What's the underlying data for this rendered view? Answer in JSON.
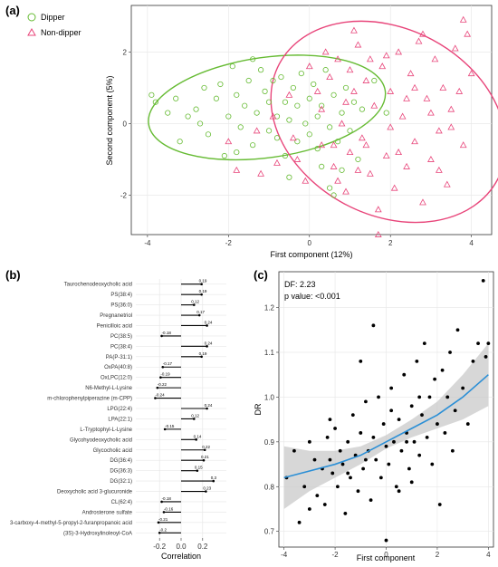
{
  "colors": {
    "dipper": "#66bb33",
    "nondipper": "#e8457a",
    "fit": "#2b8fd6",
    "band": "#c9c9c9"
  },
  "chart_data": [
    {
      "panel": "(a)",
      "type": "scatter",
      "xlabel": "First component (12%)",
      "ylabel": "Second component (5%)",
      "xlim": [
        -4.4,
        4.5
      ],
      "ylim": [
        -3.1,
        3.3
      ],
      "xticks": [
        -4,
        -2,
        0,
        2,
        4
      ],
      "yticks": [
        -2,
        0,
        2
      ],
      "grid": true,
      "legend_position": "top-left",
      "series": [
        {
          "name": "Dipper",
          "marker": "circle",
          "points": [
            [
              -3.9,
              0.8
            ],
            [
              -3.8,
              0.6
            ],
            [
              -3.5,
              0.3
            ],
            [
              -3.3,
              0.7
            ],
            [
              -3.2,
              -0.5
            ],
            [
              -3.0,
              0.2
            ],
            [
              -2.8,
              0.4
            ],
            [
              -2.7,
              0.0
            ],
            [
              -2.5,
              -0.3
            ],
            [
              -2.3,
              0.7
            ],
            [
              -2.2,
              1.1
            ],
            [
              -2.0,
              0.2
            ],
            [
              -1.9,
              1.6
            ],
            [
              -1.8,
              0.8
            ],
            [
              -1.8,
              -0.8
            ],
            [
              -1.7,
              -0.1
            ],
            [
              -1.6,
              0.5
            ],
            [
              -1.5,
              1.2
            ],
            [
              -1.4,
              -0.6
            ],
            [
              -1.3,
              0.3
            ],
            [
              -1.2,
              1.5
            ],
            [
              -1.1,
              0.9
            ],
            [
              -1.0,
              -0.2
            ],
            [
              -1.0,
              0.6
            ],
            [
              -0.9,
              1.2
            ],
            [
              -0.8,
              -0.4
            ],
            [
              -0.8,
              0.2
            ],
            [
              -0.7,
              1.3
            ],
            [
              -0.6,
              0.6
            ],
            [
              -0.6,
              -0.9
            ],
            [
              -0.5,
              0.1
            ],
            [
              -0.4,
              1.0
            ],
            [
              -0.3,
              -0.5
            ],
            [
              -0.3,
              0.5
            ],
            [
              -0.2,
              1.4
            ],
            [
              -0.1,
              0.0
            ],
            [
              0.0,
              -0.3
            ],
            [
              0.0,
              0.7
            ],
            [
              0.1,
              1.1
            ],
            [
              0.2,
              0.2
            ],
            [
              0.2,
              -0.7
            ],
            [
              0.3,
              0.5
            ],
            [
              0.4,
              1.5
            ],
            [
              0.5,
              -0.1
            ],
            [
              0.6,
              0.8
            ],
            [
              0.7,
              -0.5
            ],
            [
              0.8,
              0.3
            ],
            [
              0.9,
              1.0
            ],
            [
              1.0,
              -0.2
            ],
            [
              1.1,
              0.6
            ],
            [
              1.2,
              -1.0
            ],
            [
              1.3,
              0.4
            ],
            [
              0.5,
              -1.8
            ],
            [
              -2.1,
              -0.9
            ],
            [
              -1.4,
              1.8
            ],
            [
              0.8,
              -1.3
            ],
            [
              1.6,
              1.2
            ],
            [
              -0.5,
              -1.5
            ],
            [
              0.3,
              -1.2
            ],
            [
              -2.6,
              1.0
            ],
            [
              0.6,
              -2.0
            ],
            [
              1.9,
              0.3
            ]
          ]
        },
        {
          "name": "Non-dipper",
          "marker": "triangle",
          "points": [
            [
              -1.8,
              -1.3
            ],
            [
              -1.2,
              -1.4
            ],
            [
              -0.8,
              -1.1
            ],
            [
              -0.5,
              0.8
            ],
            [
              -0.3,
              -1.0
            ],
            [
              -0.1,
              -1.6
            ],
            [
              0.0,
              1.6
            ],
            [
              0.2,
              0.9
            ],
            [
              0.3,
              -0.6
            ],
            [
              0.4,
              2.0
            ],
            [
              0.5,
              1.3
            ],
            [
              0.6,
              -1.2
            ],
            [
              0.7,
              1.8
            ],
            [
              0.8,
              0.0
            ],
            [
              0.9,
              -1.9
            ],
            [
              1.0,
              1.5
            ],
            [
              1.0,
              -0.8
            ],
            [
              1.1,
              0.9
            ],
            [
              1.2,
              2.2
            ],
            [
              1.3,
              -0.4
            ],
            [
              1.4,
              1.2
            ],
            [
              1.5,
              -1.4
            ],
            [
              1.6,
              0.5
            ],
            [
              1.7,
              -2.4
            ],
            [
              1.8,
              1.6
            ],
            [
              1.9,
              -0.9
            ],
            [
              2.0,
              0.9
            ],
            [
              2.1,
              -1.8
            ],
            [
              2.2,
              2.0
            ],
            [
              2.3,
              0.2
            ],
            [
              2.4,
              -1.2
            ],
            [
              2.5,
              1.4
            ],
            [
              2.6,
              -0.5
            ],
            [
              2.7,
              2.3
            ],
            [
              2.8,
              -2.2
            ],
            [
              2.9,
              0.7
            ],
            [
              3.0,
              -1.0
            ],
            [
              3.1,
              1.8
            ],
            [
              3.2,
              -0.2
            ],
            [
              3.3,
              1.0
            ],
            [
              3.4,
              -1.7
            ],
            [
              3.5,
              0.4
            ],
            [
              3.6,
              2.1
            ],
            [
              3.7,
              0.9
            ],
            [
              3.8,
              -0.6
            ],
            [
              3.9,
              2.5
            ],
            [
              4.0,
              1.4
            ],
            [
              3.8,
              2.9
            ],
            [
              3.5,
              -0.1
            ],
            [
              2.0,
              -0.1
            ],
            [
              1.5,
              1.8
            ],
            [
              0.6,
              -0.6
            ],
            [
              -0.4,
              -0.4
            ],
            [
              0.9,
              0.6
            ],
            [
              2.4,
              0.7
            ],
            [
              1.2,
              -1.3
            ],
            [
              1.7,
              -3.1
            ],
            [
              2.6,
              1.0
            ],
            [
              3.0,
              0.3
            ],
            [
              -0.9,
              0.2
            ],
            [
              0.3,
              0.4
            ],
            [
              1.4,
              -0.6
            ],
            [
              2.2,
              -0.8
            ],
            [
              3.2,
              -1.3
            ],
            [
              1.9,
              1.9
            ],
            [
              0.7,
              -1.6
            ],
            [
              -1.3,
              -0.2
            ],
            [
              -2.0,
              -0.5
            ],
            [
              1.1,
              2.6
            ],
            [
              2.8,
              2.5
            ]
          ]
        }
      ],
      "ellipses": [
        {
          "series": "Dipper",
          "cx": -1.05,
          "cy": 0.45,
          "rx": 2.95,
          "ry": 1.4,
          "angle": -8
        },
        {
          "series": "Non-dipper",
          "cx": 1.95,
          "cy": 0.05,
          "rx": 3.05,
          "ry": 2.6,
          "angle": 28
        }
      ]
    },
    {
      "panel": "(b)",
      "type": "bar",
      "xlabel": "Correlation",
      "xlim": [
        -0.42,
        0.42
      ],
      "xticks": [
        -0.2,
        0.0,
        0.2
      ],
      "xtick_labels": [
        "-0.2",
        "0.0",
        "0.2"
      ],
      "grid": true,
      "categories": [
        "Taurochenodeoxycholic acid",
        "PS(38:4)",
        "PS(36:0)",
        "Pregnanetriol",
        "Penicilloic acid",
        "PC(38:5)",
        "PC(38:4)",
        "PA(P-31:1)",
        "OxPA(40:8)",
        "OxLPC(12:0)",
        "N6-Methyl-L-Lysine",
        "m-chlorophenylpiperazine (m-CPP)",
        "LPG(22:4)",
        "LPA(22:1)",
        "L-Tryptophyl-L-Lysine",
        "Glycohyodeoxycholic acid",
        "Glycocholic acid",
        "DG(36:4)",
        "DG(36:3)",
        "DG(32:1)",
        "Deoxycholic acid 3-glucuronide",
        "CL(62:4)",
        "Androsterone sulfate",
        "3-carboxy-4-methyl-5-propyl-2-furanpropanoic acid",
        "(3S)-3-Hydroxylinoleoyl-CoA"
      ],
      "values": [
        0.19,
        0.19,
        0.12,
        0.17,
        0.24,
        -0.18,
        0.24,
        0.19,
        -0.17,
        -0.19,
        -0.22,
        -0.24,
        0.24,
        0.12,
        -0.15,
        0.14,
        0.22,
        0.21,
        0.15,
        0.3,
        0.23,
        -0.18,
        -0.16,
        -0.21,
        -0.2
      ],
      "labels": [
        "0.19",
        "0.19",
        "0.12",
        "0.17",
        "0.24",
        "-0.18",
        "0.24",
        "0.19",
        "-0.17",
        "-0.19",
        "-0.22",
        "-0.24",
        "0.24",
        "0.12",
        "-0.15",
        "0.14",
        "0.22",
        "0.21",
        "0.15",
        "0.3",
        "0.23",
        "-0.18",
        "-0.16",
        "-0.21",
        "-0.2"
      ]
    },
    {
      "panel": "(c)",
      "type": "scatter",
      "xlabel": "First component",
      "ylabel": "DR",
      "xlim": [
        -4.2,
        4.2
      ],
      "ylim": [
        0.665,
        1.28
      ],
      "xticks": [
        -4,
        -2,
        0,
        2,
        4
      ],
      "yticks": [
        0.7,
        0.8,
        0.9,
        1.0,
        1.1,
        1.2
      ],
      "yticks_labels": [
        "0.7",
        "0.8",
        "0.9",
        "1.0",
        "1.1",
        "1.2"
      ],
      "grid": true,
      "annotations": [
        "DF: 2.23",
        "p value: <0.001"
      ],
      "points": [
        [
          -3.9,
          0.82
        ],
        [
          -3.6,
          0.88
        ],
        [
          -3.4,
          0.72
        ],
        [
          -3.2,
          0.8
        ],
        [
          -3.0,
          0.9
        ],
        [
          -2.8,
          0.86
        ],
        [
          -2.7,
          0.78
        ],
        [
          -2.5,
          0.84
        ],
        [
          -2.4,
          0.76
        ],
        [
          -2.3,
          0.91
        ],
        [
          -2.2,
          0.86
        ],
        [
          -2.1,
          0.83
        ],
        [
          -2.0,
          0.93
        ],
        [
          -1.9,
          0.8
        ],
        [
          -1.8,
          0.88
        ],
        [
          -1.7,
          0.85
        ],
        [
          -1.6,
          0.74
        ],
        [
          -1.5,
          0.9
        ],
        [
          -1.4,
          0.82
        ],
        [
          -1.3,
          0.96
        ],
        [
          -1.2,
          0.87
        ],
        [
          -1.1,
          0.79
        ],
        [
          -1.0,
          0.92
        ],
        [
          -0.9,
          0.84
        ],
        [
          -0.8,
          0.99
        ],
        [
          -0.7,
          0.88
        ],
        [
          -0.6,
          0.77
        ],
        [
          -0.5,
          0.91
        ],
        [
          -0.4,
          0.86
        ],
        [
          -0.3,
          1.0
        ],
        [
          -0.2,
          0.82
        ],
        [
          -0.1,
          0.94
        ],
        [
          0.0,
          0.89
        ],
        [
          0.0,
          0.68
        ],
        [
          0.1,
          0.85
        ],
        [
          0.2,
          1.02
        ],
        [
          0.3,
          0.9
        ],
        [
          0.4,
          0.8
        ],
        [
          0.5,
          0.95
        ],
        [
          0.6,
          0.88
        ],
        [
          0.7,
          1.05
        ],
        [
          0.8,
          0.92
        ],
        [
          0.9,
          0.84
        ],
        [
          1.0,
          0.98
        ],
        [
          1.1,
          0.9
        ],
        [
          1.2,
          1.08
        ],
        [
          1.3,
          0.87
        ],
        [
          1.4,
          0.96
        ],
        [
          1.5,
          1.12
        ],
        [
          1.6,
          0.91
        ],
        [
          1.7,
          1.0
        ],
        [
          1.8,
          0.85
        ],
        [
          1.9,
          1.04
        ],
        [
          2.0,
          0.94
        ],
        [
          2.1,
          0.76
        ],
        [
          2.2,
          1.06
        ],
        [
          2.3,
          0.92
        ],
        [
          2.4,
          1.0
        ],
        [
          2.5,
          1.1
        ],
        [
          2.7,
          0.97
        ],
        [
          2.8,
          1.15
        ],
        [
          3.0,
          1.02
        ],
        [
          3.2,
          0.94
        ],
        [
          3.4,
          1.08
        ],
        [
          3.6,
          1.12
        ],
        [
          3.8,
          1.26
        ],
        [
          3.9,
          1.09
        ],
        [
          4.0,
          1.12
        ],
        [
          -3.0,
          0.75
        ],
        [
          -1.0,
          1.08
        ],
        [
          -0.5,
          1.16
        ],
        [
          1.0,
          0.81
        ],
        [
          0.5,
          0.79
        ],
        [
          -2.2,
          0.95
        ],
        [
          2.6,
          0.88
        ],
        [
          -1.5,
          0.83
        ],
        [
          0.2,
          0.97
        ],
        [
          1.3,
          1.0
        ],
        [
          -0.8,
          0.86
        ],
        [
          0.8,
          0.9
        ]
      ],
      "fit": {
        "x": [
          -4,
          -3,
          -2,
          -1,
          0,
          1,
          2,
          3,
          4
        ],
        "y": [
          0.82,
          0.835,
          0.85,
          0.87,
          0.9,
          0.93,
          0.96,
          1.0,
          1.05
        ],
        "lower": [
          0.75,
          0.79,
          0.82,
          0.85,
          0.885,
          0.91,
          0.93,
          0.95,
          0.98
        ],
        "upper": [
          0.89,
          0.88,
          0.88,
          0.89,
          0.915,
          0.95,
          0.99,
          1.05,
          1.12
        ]
      }
    }
  ]
}
